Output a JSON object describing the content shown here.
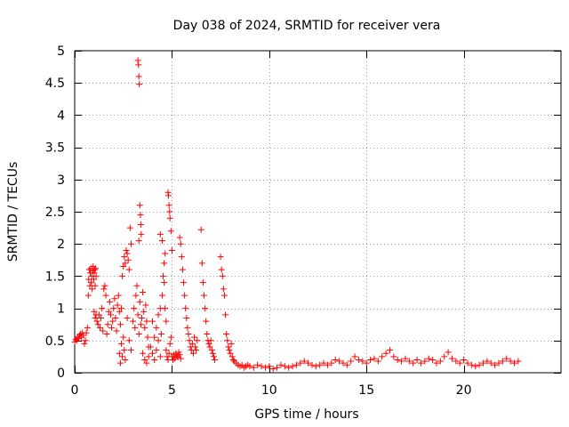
{
  "chart_data": {
    "type": "scatter",
    "title": "Day 038 of 2024, SRMTID for receiver vera",
    "xlabel": "GPS time / hours",
    "ylabel": "SRMTID / TECUs",
    "xlim": [
      0,
      25
    ],
    "ylim": [
      0,
      5
    ],
    "xticks": [
      0,
      5,
      10,
      15,
      20
    ],
    "xtick_labels": [
      "0",
      "5",
      "10",
      "15",
      "20"
    ],
    "yticks": [
      0,
      0.5,
      1,
      1.5,
      2,
      2.5,
      3,
      3.5,
      4,
      4.5,
      5
    ],
    "ytick_labels": [
      "0",
      "0.5",
      "1",
      "1.5",
      "2",
      "2.5",
      "3",
      "3.5",
      "4",
      "4.5",
      "5"
    ],
    "grid": true,
    "marker": "+",
    "series": [
      {
        "name": "SRMTID",
        "color": "#ff0000",
        "points": [
          [
            0.0,
            0.48
          ],
          [
            0.05,
            0.52
          ],
          [
            0.1,
            0.5
          ],
          [
            0.15,
            0.55
          ],
          [
            0.2,
            0.53
          ],
          [
            0.25,
            0.58
          ],
          [
            0.3,
            0.6
          ],
          [
            0.35,
            0.55
          ],
          [
            0.4,
            0.62
          ],
          [
            0.45,
            0.58
          ],
          [
            0.5,
            0.45
          ],
          [
            0.55,
            0.5
          ],
          [
            0.6,
            0.62
          ],
          [
            0.65,
            0.7
          ],
          [
            0.7,
            1.2
          ],
          [
            0.72,
            1.45
          ],
          [
            0.75,
            1.6
          ],
          [
            0.78,
            1.35
          ],
          [
            0.8,
            1.55
          ],
          [
            0.83,
            1.62
          ],
          [
            0.85,
            1.4
          ],
          [
            0.88,
            1.5
          ],
          [
            0.9,
            1.3
          ],
          [
            0.93,
            1.58
          ],
          [
            0.95,
            1.65
          ],
          [
            0.98,
            1.45
          ],
          [
            1.0,
            1.55
          ],
          [
            1.03,
            1.6
          ],
          [
            1.05,
            1.35
          ],
          [
            1.08,
            1.62
          ],
          [
            1.1,
            1.5
          ],
          [
            1.0,
            0.95
          ],
          [
            1.05,
            0.85
          ],
          [
            1.1,
            0.9
          ],
          [
            1.15,
            0.8
          ],
          [
            1.2,
            0.75
          ],
          [
            1.25,
            0.9
          ],
          [
            1.3,
            0.7
          ],
          [
            1.35,
            0.85
          ],
          [
            1.4,
            1.0
          ],
          [
            1.45,
            0.65
          ],
          [
            1.5,
            1.3
          ],
          [
            1.55,
            1.35
          ],
          [
            1.6,
            1.2
          ],
          [
            1.65,
            0.6
          ],
          [
            1.7,
            0.75
          ],
          [
            1.75,
            0.95
          ],
          [
            1.8,
            1.1
          ],
          [
            1.85,
            0.9
          ],
          [
            1.9,
            0.7
          ],
          [
            1.95,
            0.8
          ],
          [
            2.0,
            1.0
          ],
          [
            2.05,
            1.15
          ],
          [
            2.1,
            0.85
          ],
          [
            2.15,
            0.65
          ],
          [
            2.2,
            1.05
          ],
          [
            2.25,
            1.2
          ],
          [
            2.3,
            0.95
          ],
          [
            2.35,
            0.75
          ],
          [
            2.4,
            1.0
          ],
          [
            2.3,
            0.3
          ],
          [
            2.35,
            0.15
          ],
          [
            2.4,
            0.45
          ],
          [
            2.45,
            0.25
          ],
          [
            2.5,
            0.55
          ],
          [
            2.55,
            0.35
          ],
          [
            2.6,
            0.2
          ],
          [
            2.45,
            1.5
          ],
          [
            2.5,
            1.65
          ],
          [
            2.55,
            1.8
          ],
          [
            2.6,
            1.7
          ],
          [
            2.65,
            1.9
          ],
          [
            2.7,
            1.85
          ],
          [
            2.75,
            1.75
          ],
          [
            2.8,
            1.6
          ],
          [
            2.85,
            2.25
          ],
          [
            2.9,
            2.0
          ],
          [
            2.7,
            0.85
          ],
          [
            2.8,
            0.5
          ],
          [
            2.9,
            0.35
          ],
          [
            3.0,
            0.8
          ],
          [
            3.05,
            1.0
          ],
          [
            3.1,
            0.7
          ],
          [
            3.15,
            1.2
          ],
          [
            3.2,
            1.35
          ],
          [
            3.25,
            0.9
          ],
          [
            3.3,
            0.6
          ],
          [
            3.35,
            1.1
          ],
          [
            3.4,
            0.75
          ],
          [
            3.45,
            0.85
          ],
          [
            3.5,
            1.25
          ],
          [
            3.55,
            0.95
          ],
          [
            3.6,
            0.7
          ],
          [
            3.65,
            1.05
          ],
          [
            3.7,
            0.8
          ],
          [
            3.75,
            0.55
          ],
          [
            3.8,
            0.4
          ],
          [
            3.25,
            4.85
          ],
          [
            3.28,
            4.78
          ],
          [
            3.3,
            4.6
          ],
          [
            3.32,
            4.48
          ],
          [
            3.35,
            2.6
          ],
          [
            3.38,
            2.45
          ],
          [
            3.4,
            2.3
          ],
          [
            3.42,
            2.15
          ],
          [
            3.3,
            2.05
          ],
          [
            3.5,
            0.3
          ],
          [
            3.6,
            0.2
          ],
          [
            3.7,
            0.15
          ],
          [
            3.8,
            0.25
          ],
          [
            3.9,
            0.4
          ],
          [
            4.0,
            0.3
          ],
          [
            4.1,
            0.2
          ],
          [
            4.2,
            0.35
          ],
          [
            4.3,
            0.5
          ],
          [
            4.4,
            0.25
          ],
          [
            4.0,
            0.8
          ],
          [
            4.1,
            0.55
          ],
          [
            4.2,
            0.7
          ],
          [
            4.3,
            0.9
          ],
          [
            4.4,
            1.0
          ],
          [
            4.45,
            0.6
          ],
          [
            4.5,
            1.2
          ],
          [
            4.55,
            1.5
          ],
          [
            4.6,
            1.4
          ],
          [
            4.65,
            1.0
          ],
          [
            4.7,
            0.8
          ],
          [
            4.4,
            2.15
          ],
          [
            4.5,
            2.05
          ],
          [
            4.6,
            1.7
          ],
          [
            4.65,
            1.85
          ],
          [
            4.8,
            2.8
          ],
          [
            4.82,
            2.75
          ],
          [
            4.85,
            2.6
          ],
          [
            4.88,
            2.5
          ],
          [
            4.9,
            2.4
          ],
          [
            4.95,
            2.2
          ],
          [
            5.0,
            1.9
          ],
          [
            4.7,
            0.35
          ],
          [
            4.75,
            0.25
          ],
          [
            4.8,
            0.2
          ],
          [
            4.85,
            0.3
          ],
          [
            4.9,
            0.45
          ],
          [
            4.95,
            0.55
          ],
          [
            5.0,
            0.25
          ],
          [
            5.05,
            0.2
          ],
          [
            5.1,
            0.28
          ],
          [
            5.15,
            0.22
          ],
          [
            5.2,
            0.3
          ],
          [
            5.25,
            0.26
          ],
          [
            5.3,
            0.24
          ],
          [
            5.35,
            0.32
          ],
          [
            5.4,
            0.28
          ],
          [
            5.45,
            0.22
          ],
          [
            5.4,
            2.1
          ],
          [
            5.45,
            2.0
          ],
          [
            5.5,
            1.8
          ],
          [
            5.55,
            1.6
          ],
          [
            5.6,
            1.4
          ],
          [
            5.65,
            1.2
          ],
          [
            5.7,
            1.0
          ],
          [
            5.75,
            0.85
          ],
          [
            5.8,
            0.7
          ],
          [
            5.85,
            0.6
          ],
          [
            5.9,
            0.5
          ],
          [
            5.95,
            0.4
          ],
          [
            6.0,
            0.35
          ],
          [
            6.05,
            0.45
          ],
          [
            6.1,
            0.3
          ],
          [
            6.15,
            0.55
          ],
          [
            6.2,
            0.4
          ],
          [
            6.25,
            0.35
          ],
          [
            6.3,
            0.5
          ],
          [
            6.5,
            2.22
          ],
          [
            6.55,
            1.7
          ],
          [
            6.6,
            1.4
          ],
          [
            6.65,
            1.2
          ],
          [
            6.7,
            1.0
          ],
          [
            6.75,
            0.8
          ],
          [
            6.8,
            0.6
          ],
          [
            6.85,
            0.5
          ],
          [
            6.9,
            0.45
          ],
          [
            6.95,
            0.4
          ],
          [
            7.0,
            0.5
          ],
          [
            7.05,
            0.35
          ],
          [
            7.1,
            0.3
          ],
          [
            7.15,
            0.25
          ],
          [
            7.2,
            0.2
          ],
          [
            7.5,
            1.8
          ],
          [
            7.55,
            1.6
          ],
          [
            7.6,
            1.5
          ],
          [
            7.65,
            1.3
          ],
          [
            7.7,
            1.2
          ],
          [
            7.75,
            0.9
          ],
          [
            7.8,
            0.6
          ],
          [
            7.85,
            0.5
          ],
          [
            7.9,
            0.4
          ],
          [
            7.95,
            0.35
          ],
          [
            8.0,
            0.3
          ],
          [
            8.05,
            0.45
          ],
          [
            8.1,
            0.25
          ],
          [
            8.15,
            0.2
          ],
          [
            8.2,
            0.18
          ],
          [
            8.3,
            0.15
          ],
          [
            8.4,
            0.12
          ],
          [
            8.5,
            0.1
          ],
          [
            8.6,
            0.12
          ],
          [
            8.7,
            0.08
          ],
          [
            8.8,
            0.1
          ],
          [
            8.9,
            0.12
          ],
          [
            9.0,
            0.1
          ],
          [
            9.2,
            0.08
          ],
          [
            9.4,
            0.12
          ],
          [
            9.6,
            0.1
          ],
          [
            9.8,
            0.08
          ],
          [
            10.0,
            0.1
          ],
          [
            10.2,
            0.06
          ],
          [
            10.4,
            0.08
          ],
          [
            10.6,
            0.12
          ],
          [
            10.8,
            0.1
          ],
          [
            11.0,
            0.08
          ],
          [
            11.2,
            0.1
          ],
          [
            11.4,
            0.12
          ],
          [
            11.6,
            0.15
          ],
          [
            11.8,
            0.18
          ],
          [
            12.0,
            0.15
          ],
          [
            12.2,
            0.12
          ],
          [
            12.4,
            0.1
          ],
          [
            12.6,
            0.12
          ],
          [
            12.8,
            0.15
          ],
          [
            13.0,
            0.12
          ],
          [
            13.2,
            0.15
          ],
          [
            13.4,
            0.2
          ],
          [
            13.6,
            0.18
          ],
          [
            13.8,
            0.15
          ],
          [
            14.0,
            0.12
          ],
          [
            14.2,
            0.18
          ],
          [
            14.4,
            0.25
          ],
          [
            14.6,
            0.2
          ],
          [
            14.8,
            0.18
          ],
          [
            15.0,
            0.15
          ],
          [
            15.2,
            0.2
          ],
          [
            15.4,
            0.22
          ],
          [
            15.6,
            0.18
          ],
          [
            15.8,
            0.25
          ],
          [
            16.0,
            0.3
          ],
          [
            16.2,
            0.35
          ],
          [
            16.4,
            0.25
          ],
          [
            16.6,
            0.2
          ],
          [
            16.8,
            0.18
          ],
          [
            17.0,
            0.22
          ],
          [
            17.2,
            0.18
          ],
          [
            17.4,
            0.15
          ],
          [
            17.6,
            0.2
          ],
          [
            17.8,
            0.15
          ],
          [
            18.0,
            0.18
          ],
          [
            18.2,
            0.22
          ],
          [
            18.4,
            0.2
          ],
          [
            18.6,
            0.15
          ],
          [
            18.8,
            0.18
          ],
          [
            19.0,
            0.25
          ],
          [
            19.2,
            0.32
          ],
          [
            19.4,
            0.22
          ],
          [
            19.6,
            0.18
          ],
          [
            19.8,
            0.15
          ],
          [
            20.0,
            0.2
          ],
          [
            20.2,
            0.15
          ],
          [
            20.4,
            0.12
          ],
          [
            20.6,
            0.1
          ],
          [
            20.8,
            0.12
          ],
          [
            21.0,
            0.15
          ],
          [
            21.2,
            0.18
          ],
          [
            21.4,
            0.15
          ],
          [
            21.6,
            0.12
          ],
          [
            21.8,
            0.15
          ],
          [
            22.0,
            0.18
          ],
          [
            22.2,
            0.22
          ],
          [
            22.4,
            0.18
          ],
          [
            22.6,
            0.15
          ],
          [
            22.8,
            0.18
          ]
        ]
      }
    ]
  }
}
